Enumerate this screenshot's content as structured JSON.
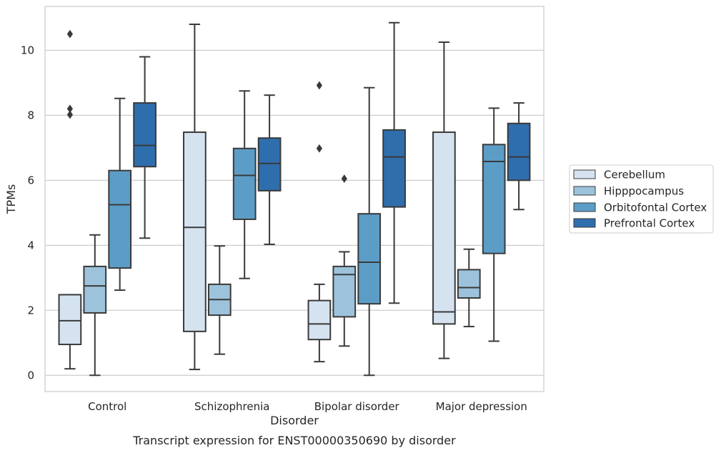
{
  "chart_data": {
    "type": "box",
    "title": "",
    "caption": "Transcript expression for ENST00000350690 by disorder",
    "xlabel": "Disorder",
    "ylabel": "TPMs",
    "ylim": [
      -0.5,
      11.35
    ],
    "yticks": [
      0,
      2,
      4,
      6,
      8,
      10
    ],
    "grid": "horizontal",
    "legend_position": "right",
    "categories": [
      "Control",
      "Schizophrenia",
      "Bipolar disorder",
      "Major depression"
    ],
    "series": [
      {
        "name": "Cerebellum",
        "color": "#d5e3f0",
        "boxes": [
          {
            "whislo": 0.2,
            "q1": 0.95,
            "med": 1.68,
            "q3": 2.48,
            "whishi": 2.48,
            "fliers": [
              10.5,
              8.2,
              8.02
            ]
          },
          {
            "whislo": 0.18,
            "q1": 1.35,
            "med": 4.55,
            "q3": 7.48,
            "whishi": 10.8,
            "fliers": []
          },
          {
            "whislo": 0.42,
            "q1": 1.1,
            "med": 1.58,
            "q3": 2.3,
            "whishi": 2.8,
            "fliers": [
              8.92,
              6.98
            ]
          },
          {
            "whislo": 0.52,
            "q1": 1.58,
            "med": 1.95,
            "q3": 7.48,
            "whishi": 10.25,
            "fliers": []
          }
        ]
      },
      {
        "name": "Hipppocampus",
        "color": "#9dc3dc",
        "boxes": [
          {
            "whislo": 0.0,
            "q1": 1.92,
            "med": 2.75,
            "q3": 3.35,
            "whishi": 4.32,
            "fliers": []
          },
          {
            "whislo": 0.65,
            "q1": 1.85,
            "med": 2.33,
            "q3": 2.8,
            "whishi": 3.98,
            "fliers": []
          },
          {
            "whislo": 0.9,
            "q1": 1.8,
            "med": 3.1,
            "q3": 3.35,
            "whishi": 3.8,
            "fliers": [
              6.05
            ]
          },
          {
            "whislo": 1.5,
            "q1": 2.38,
            "med": 2.7,
            "q3": 3.25,
            "whishi": 3.88,
            "fliers": []
          }
        ]
      },
      {
        "name": "Orbitofontal Cortex",
        "color": "#5c9dc8",
        "boxes": [
          {
            "whislo": 2.62,
            "q1": 3.3,
            "med": 5.25,
            "q3": 6.3,
            "whishi": 8.52,
            "fliers": []
          },
          {
            "whislo": 2.98,
            "q1": 4.8,
            "med": 6.15,
            "q3": 6.98,
            "whishi": 8.75,
            "fliers": []
          },
          {
            "whislo": 0.0,
            "q1": 2.2,
            "med": 3.48,
            "q3": 4.97,
            "whishi": 8.85,
            "fliers": []
          },
          {
            "whislo": 1.05,
            "q1": 3.75,
            "med": 6.58,
            "q3": 7.1,
            "whishi": 8.22,
            "fliers": []
          }
        ]
      },
      {
        "name": "Prefrontal Cortex",
        "color": "#2f6ead",
        "boxes": [
          {
            "whislo": 4.22,
            "q1": 6.42,
            "med": 7.07,
            "q3": 8.38,
            "whishi": 9.8,
            "fliers": []
          },
          {
            "whislo": 4.03,
            "q1": 5.68,
            "med": 6.52,
            "q3": 7.3,
            "whishi": 8.62,
            "fliers": []
          },
          {
            "whislo": 2.22,
            "q1": 5.18,
            "med": 6.72,
            "q3": 7.55,
            "whishi": 10.85,
            "fliers": []
          },
          {
            "whislo": 5.1,
            "q1": 6.0,
            "med": 6.72,
            "q3": 7.75,
            "whishi": 8.38,
            "fliers": []
          }
        ]
      }
    ]
  }
}
